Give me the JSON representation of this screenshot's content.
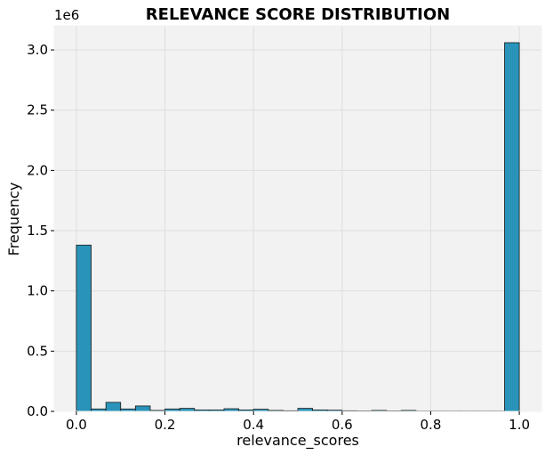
{
  "chart_data": {
    "type": "bar",
    "title": "RELEVANCE SCORE DISTRIBUTION",
    "xlabel": "relevance_scores",
    "ylabel": "Frequency",
    "y_offset_label": "1e6",
    "xlim": [
      -0.05,
      1.05
    ],
    "ylim": [
      0,
      3.2
    ],
    "x_ticks": [
      0.0,
      0.2,
      0.4,
      0.6,
      0.8,
      1.0
    ],
    "x_tick_labels": [
      "0.0",
      "0.2",
      "0.4",
      "0.6",
      "0.8",
      "1.0"
    ],
    "y_ticks": [
      0.0,
      0.5,
      1.0,
      1.5,
      2.0,
      2.5,
      3.0
    ],
    "y_tick_labels": [
      "0.0",
      "0.5",
      "1.0",
      "1.5",
      "2.0",
      "2.5",
      "3.0"
    ],
    "grid": true,
    "bin_edges": [
      0.0,
      0.0333,
      0.0667,
      0.1,
      0.1333,
      0.1667,
      0.2,
      0.2333,
      0.2667,
      0.3,
      0.3333,
      0.3667,
      0.4,
      0.4333,
      0.4667,
      0.5,
      0.5333,
      0.5667,
      0.6,
      0.6333,
      0.6667,
      0.7,
      0.7333,
      0.7667,
      0.8,
      0.8333,
      0.8667,
      0.9,
      0.9333,
      0.9667,
      1.0
    ],
    "values": [
      1.38,
      0.02,
      0.075,
      0.02,
      0.045,
      0.008,
      0.02,
      0.025,
      0.012,
      0.012,
      0.022,
      0.012,
      0.018,
      0.008,
      0.005,
      0.025,
      0.012,
      0.01,
      0.005,
      0.004,
      0.008,
      0.004,
      0.008,
      0.003,
      0.003,
      0.003,
      0.003,
      0.003,
      0.003,
      3.06
    ],
    "colors": {
      "bar_fill": "#2a93b9",
      "bar_edge": "#1a1a1a",
      "plot_background": "#f2f2f2",
      "grid": "#dddddd"
    }
  }
}
